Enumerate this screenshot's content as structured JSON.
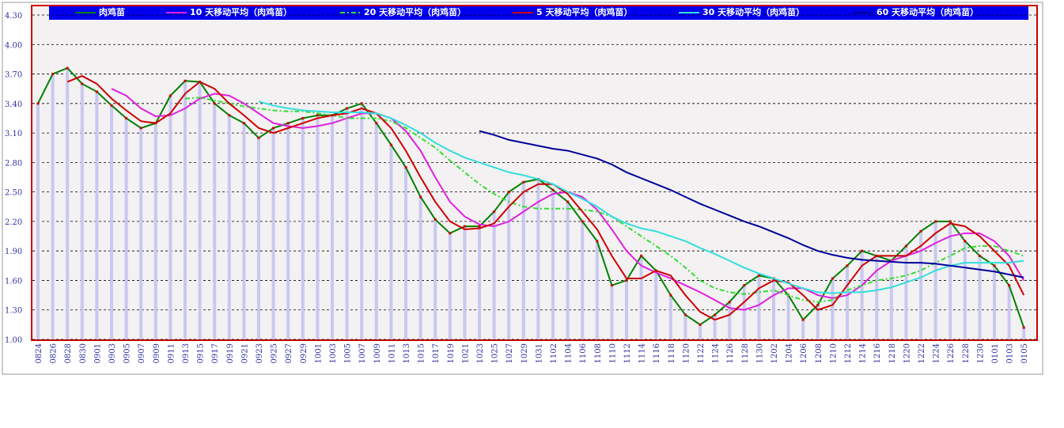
{
  "chart_data": {
    "type": "line",
    "categories": [
      "0824",
      "0826",
      "0828",
      "0830",
      "0901",
      "0903",
      "0905",
      "0907",
      "0909",
      "0911",
      "0913",
      "0915",
      "0917",
      "0919",
      "0921",
      "0923",
      "0925",
      "0927",
      "0929",
      "1001",
      "1003",
      "1005",
      "1007",
      "1009",
      "1011",
      "1013",
      "1015",
      "1017",
      "1019",
      "1021",
      "1023",
      "1025",
      "1027",
      "1029",
      "1031",
      "1102",
      "1104",
      "1106",
      "1108",
      "1110",
      "1112",
      "1114",
      "1116",
      "1118",
      "1120",
      "1122",
      "1124",
      "1126",
      "1128",
      "1130",
      "1202",
      "1204",
      "1206",
      "1208",
      "1210",
      "1212",
      "1214",
      "1216",
      "1218",
      "1220",
      "1222",
      "1224",
      "1226",
      "1228",
      "1230",
      "0101",
      "0103",
      "0105"
    ],
    "ylim": [
      1.0,
      4.3
    ],
    "yticks": [
      {
        "value": 1.0,
        "label": "1.00"
      },
      {
        "value": 1.3,
        "label": "1.30"
      },
      {
        "value": 1.6,
        "label": "1.60"
      },
      {
        "value": 1.9,
        "label": "1.90"
      },
      {
        "value": 2.2,
        "label": "2.20"
      },
      {
        "value": 2.5,
        "label": "2.50"
      },
      {
        "value": 2.8,
        "label": "2.80"
      },
      {
        "value": 3.1,
        "label": "3.10"
      },
      {
        "value": 3.4,
        "label": "3.40"
      },
      {
        "value": 3.7,
        "label": "3.70"
      },
      {
        "value": 4.0,
        "label": "4.00"
      },
      {
        "value": 4.3,
        "label": "4.30"
      }
    ],
    "grid": true,
    "bar_color": "#c8c8f0",
    "series": [
      {
        "name": "肉鸡苗",
        "color": "#008000",
        "marker_color": "#cc0000",
        "values": [
          3.4,
          3.7,
          3.76,
          3.6,
          3.52,
          3.38,
          3.25,
          3.15,
          3.2,
          3.48,
          3.63,
          3.62,
          3.4,
          3.28,
          3.2,
          3.05,
          3.15,
          3.2,
          3.25,
          3.28,
          3.28,
          3.35,
          3.4,
          3.2,
          2.98,
          2.75,
          2.45,
          2.22,
          2.08,
          2.15,
          2.15,
          2.3,
          2.5,
          2.6,
          2.63,
          2.52,
          2.4,
          2.2,
          2.0,
          1.55,
          1.6,
          1.85,
          1.7,
          1.45,
          1.25,
          1.15,
          1.25,
          1.38,
          1.55,
          1.65,
          1.62,
          1.45,
          1.2,
          1.35,
          1.62,
          1.75,
          1.9,
          1.85,
          1.8,
          1.95,
          2.1,
          2.2,
          2.2,
          2.0,
          1.85,
          1.75,
          1.55,
          1.12
        ]
      },
      {
        "name": "10 天移动平均（肉鸡苗）",
        "color": "#e020e0",
        "values": [
          null,
          null,
          null,
          null,
          null,
          3.55,
          3.48,
          3.35,
          3.27,
          3.28,
          3.35,
          3.45,
          3.5,
          3.48,
          3.4,
          3.3,
          3.2,
          3.17,
          3.15,
          3.17,
          3.2,
          3.25,
          3.3,
          3.3,
          3.25,
          3.12,
          2.92,
          2.65,
          2.4,
          2.25,
          2.17,
          2.15,
          2.2,
          2.3,
          2.4,
          2.48,
          2.5,
          2.45,
          2.32,
          2.12,
          1.9,
          1.75,
          1.68,
          1.62,
          1.55,
          1.48,
          1.4,
          1.32,
          1.3,
          1.35,
          1.45,
          1.52,
          1.52,
          1.45,
          1.42,
          1.45,
          1.55,
          1.7,
          1.8,
          1.85,
          1.9,
          1.98,
          2.05,
          2.08,
          2.08,
          2.0,
          1.85,
          1.6
        ]
      },
      {
        "name": "20 天移动平均（肉鸡苗）",
        "color": "#33dd33",
        "line_style": "dashed",
        "values": [
          null,
          null,
          null,
          null,
          null,
          null,
          null,
          null,
          null,
          null,
          3.45,
          3.46,
          3.43,
          3.4,
          3.37,
          3.35,
          3.33,
          3.32,
          3.32,
          3.3,
          3.28,
          3.25,
          3.25,
          3.25,
          3.22,
          3.15,
          3.05,
          2.95,
          2.82,
          2.7,
          2.58,
          2.48,
          2.4,
          2.35,
          2.33,
          2.33,
          2.33,
          2.32,
          2.3,
          2.25,
          2.15,
          2.05,
          1.95,
          1.85,
          1.73,
          1.6,
          1.52,
          1.48,
          1.46,
          1.48,
          1.5,
          1.45,
          1.4,
          1.38,
          1.4,
          1.5,
          1.55,
          1.6,
          1.62,
          1.65,
          1.7,
          1.78,
          1.85,
          1.93,
          1.95,
          1.95,
          1.9,
          1.85
        ]
      },
      {
        "name": "5 天移动平均（肉鸡苗）",
        "color": "#cc0000",
        "values": [
          null,
          null,
          3.62,
          3.68,
          3.6,
          3.45,
          3.33,
          3.22,
          3.2,
          3.3,
          3.5,
          3.62,
          3.55,
          3.4,
          3.28,
          3.15,
          3.1,
          3.15,
          3.2,
          3.25,
          3.28,
          3.3,
          3.35,
          3.3,
          3.15,
          2.92,
          2.65,
          2.4,
          2.2,
          2.12,
          2.13,
          2.18,
          2.35,
          2.5,
          2.58,
          2.58,
          2.48,
          2.3,
          2.12,
          1.85,
          1.62,
          1.62,
          1.7,
          1.65,
          1.45,
          1.28,
          1.2,
          1.25,
          1.38,
          1.52,
          1.6,
          1.58,
          1.45,
          1.3,
          1.35,
          1.55,
          1.75,
          1.85,
          1.85,
          1.85,
          1.95,
          2.08,
          2.18,
          2.15,
          2.05,
          1.9,
          1.75,
          1.45
        ]
      },
      {
        "name": "30 天移动平均（肉鸡苗）",
        "color": "#33dddd",
        "values": [
          null,
          null,
          null,
          null,
          null,
          null,
          null,
          null,
          null,
          null,
          null,
          null,
          null,
          null,
          null,
          3.42,
          3.38,
          3.35,
          3.33,
          3.32,
          3.31,
          3.31,
          3.31,
          3.3,
          3.25,
          3.18,
          3.1,
          3.0,
          2.92,
          2.85,
          2.8,
          2.75,
          2.7,
          2.67,
          2.63,
          2.58,
          2.5,
          2.43,
          2.35,
          2.25,
          2.18,
          2.13,
          2.1,
          2.05,
          2.0,
          1.93,
          1.87,
          1.8,
          1.73,
          1.67,
          1.62,
          1.57,
          1.52,
          1.48,
          1.47,
          1.48,
          1.48,
          1.5,
          1.53,
          1.58,
          1.63,
          1.7,
          1.75,
          1.78,
          1.78,
          1.78,
          1.78,
          1.8
        ]
      },
      {
        "name": "60 天移动平均（肉鸡苗）",
        "color": "#000099",
        "values": [
          null,
          null,
          null,
          null,
          null,
          null,
          null,
          null,
          null,
          null,
          null,
          null,
          null,
          null,
          null,
          null,
          null,
          null,
          null,
          null,
          null,
          null,
          null,
          null,
          null,
          null,
          null,
          null,
          null,
          null,
          3.12,
          3.08,
          3.03,
          3.0,
          2.97,
          2.94,
          2.92,
          2.88,
          2.84,
          2.78,
          2.7,
          2.64,
          2.58,
          2.52,
          2.45,
          2.38,
          2.32,
          2.26,
          2.2,
          2.15,
          2.09,
          2.03,
          1.96,
          1.9,
          1.86,
          1.83,
          1.81,
          1.8,
          1.79,
          1.78,
          1.78,
          1.77,
          1.75,
          1.73,
          1.71,
          1.69,
          1.66,
          1.63
        ]
      }
    ]
  }
}
